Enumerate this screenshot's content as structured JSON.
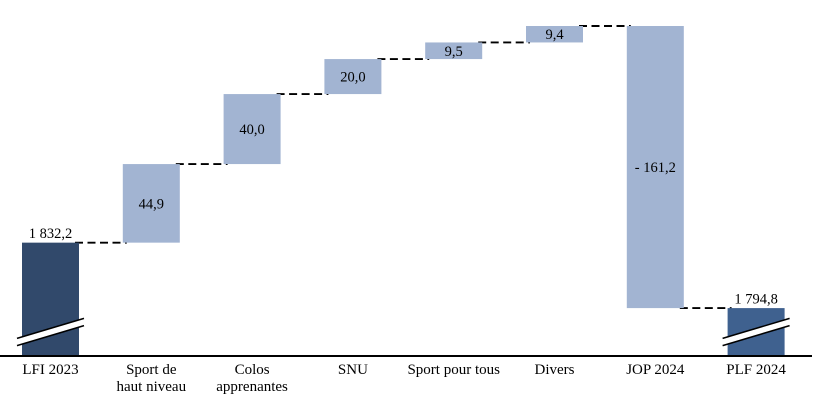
{
  "chart_data": {
    "type": "waterfall",
    "title": "",
    "number_format": "french (space thousands, comma decimals)",
    "categories": [
      "LFI 2023",
      "Sport de haut niveau",
      "Colos apprenantes",
      "SNU",
      "Sport pour tous",
      "Divers",
      "JOP 2024",
      "PLF 2024"
    ],
    "tick_lines": [
      [
        "LFI 2023"
      ],
      [
        "Sport de",
        "haut niveau"
      ],
      [
        "Colos",
        "apprenantes"
      ],
      [
        "SNU"
      ],
      [
        "Sport pour tous"
      ],
      [
        "Divers"
      ],
      [
        "JOP 2024"
      ],
      [
        "PLF 2024"
      ]
    ],
    "values": [
      1832.2,
      44.9,
      40.0,
      20.0,
      9.5,
      9.4,
      -161.2,
      1794.8
    ],
    "value_labels": [
      "1 832,2",
      "44,9",
      "40,0",
      "20,0",
      "9,5",
      "9,4",
      "- 161,2",
      "1 794,8"
    ],
    "roles": [
      "total",
      "delta",
      "delta",
      "delta",
      "delta",
      "delta",
      "delta",
      "total"
    ],
    "axis_break_on": [
      "LFI 2023",
      "PLF 2024"
    ],
    "connector_style": "dashed",
    "gridlines": false,
    "legend": false,
    "colors": {
      "total_start_bar": "#31496B",
      "total_end_bar": "#3F618F",
      "delta_bar": "#A2B4D2",
      "connector": "#000000",
      "axis_line": "#000000",
      "label_text": "#000000",
      "background": "#FFFFFF"
    }
  }
}
